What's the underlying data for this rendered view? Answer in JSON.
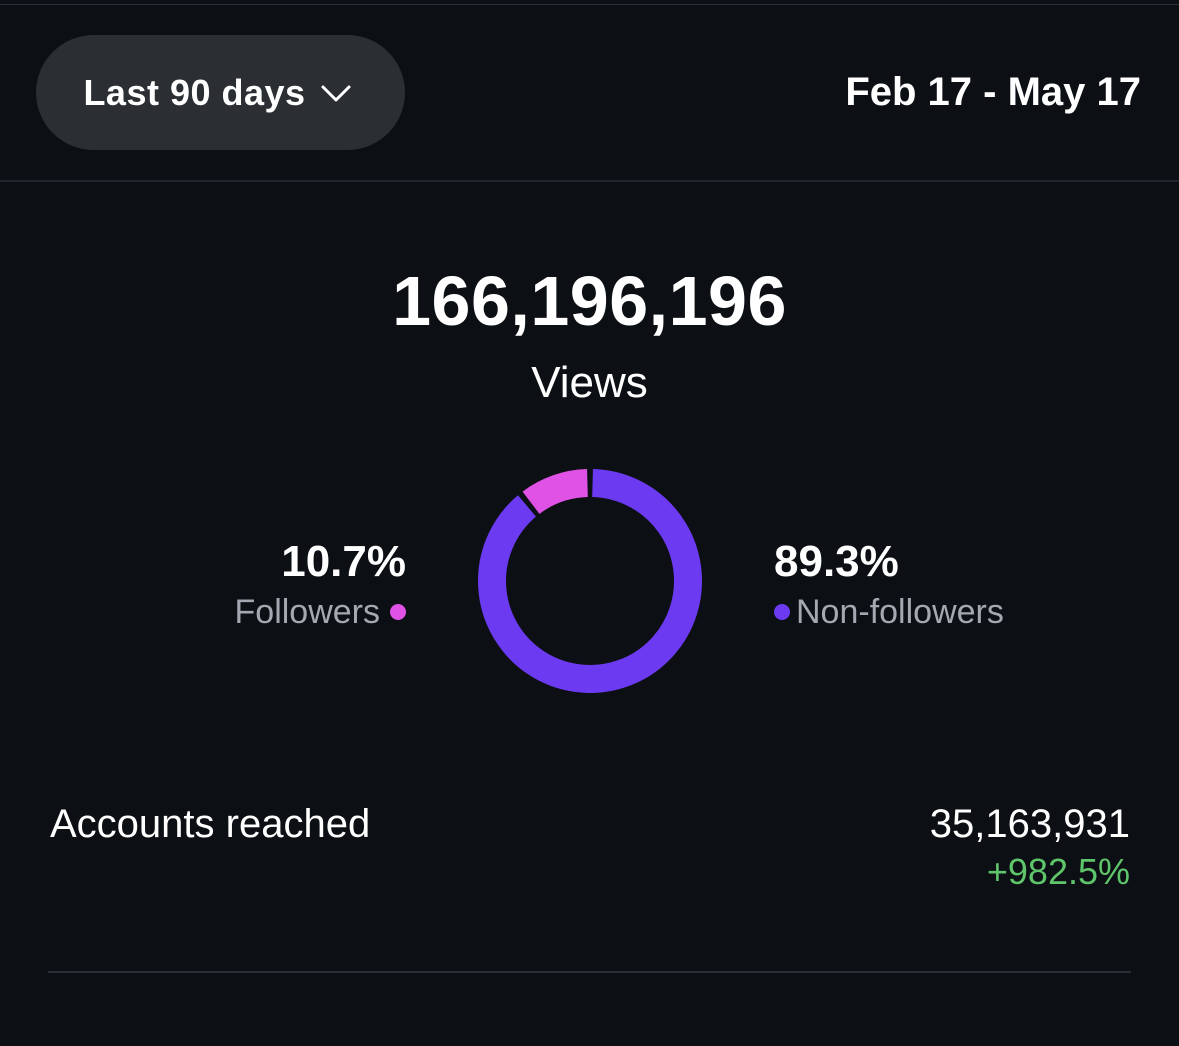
{
  "header": {
    "range_label": "Last 90 days",
    "date_range": "Feb 17 - May 17"
  },
  "summary": {
    "views_count": "166,196,196",
    "views_label": "Views"
  },
  "breakdown": {
    "followers": {
      "percent": "10.7%",
      "label": "Followers",
      "color": "#e052e6",
      "value": 10.7
    },
    "non_followers": {
      "percent": "89.3%",
      "label": "Non-followers",
      "color": "#6c3af0",
      "value": 89.3
    }
  },
  "accounts_reached": {
    "label": "Accounts reached",
    "value": "35,163,931",
    "change": "+982.5%",
    "change_color": "#5fc56a"
  }
}
